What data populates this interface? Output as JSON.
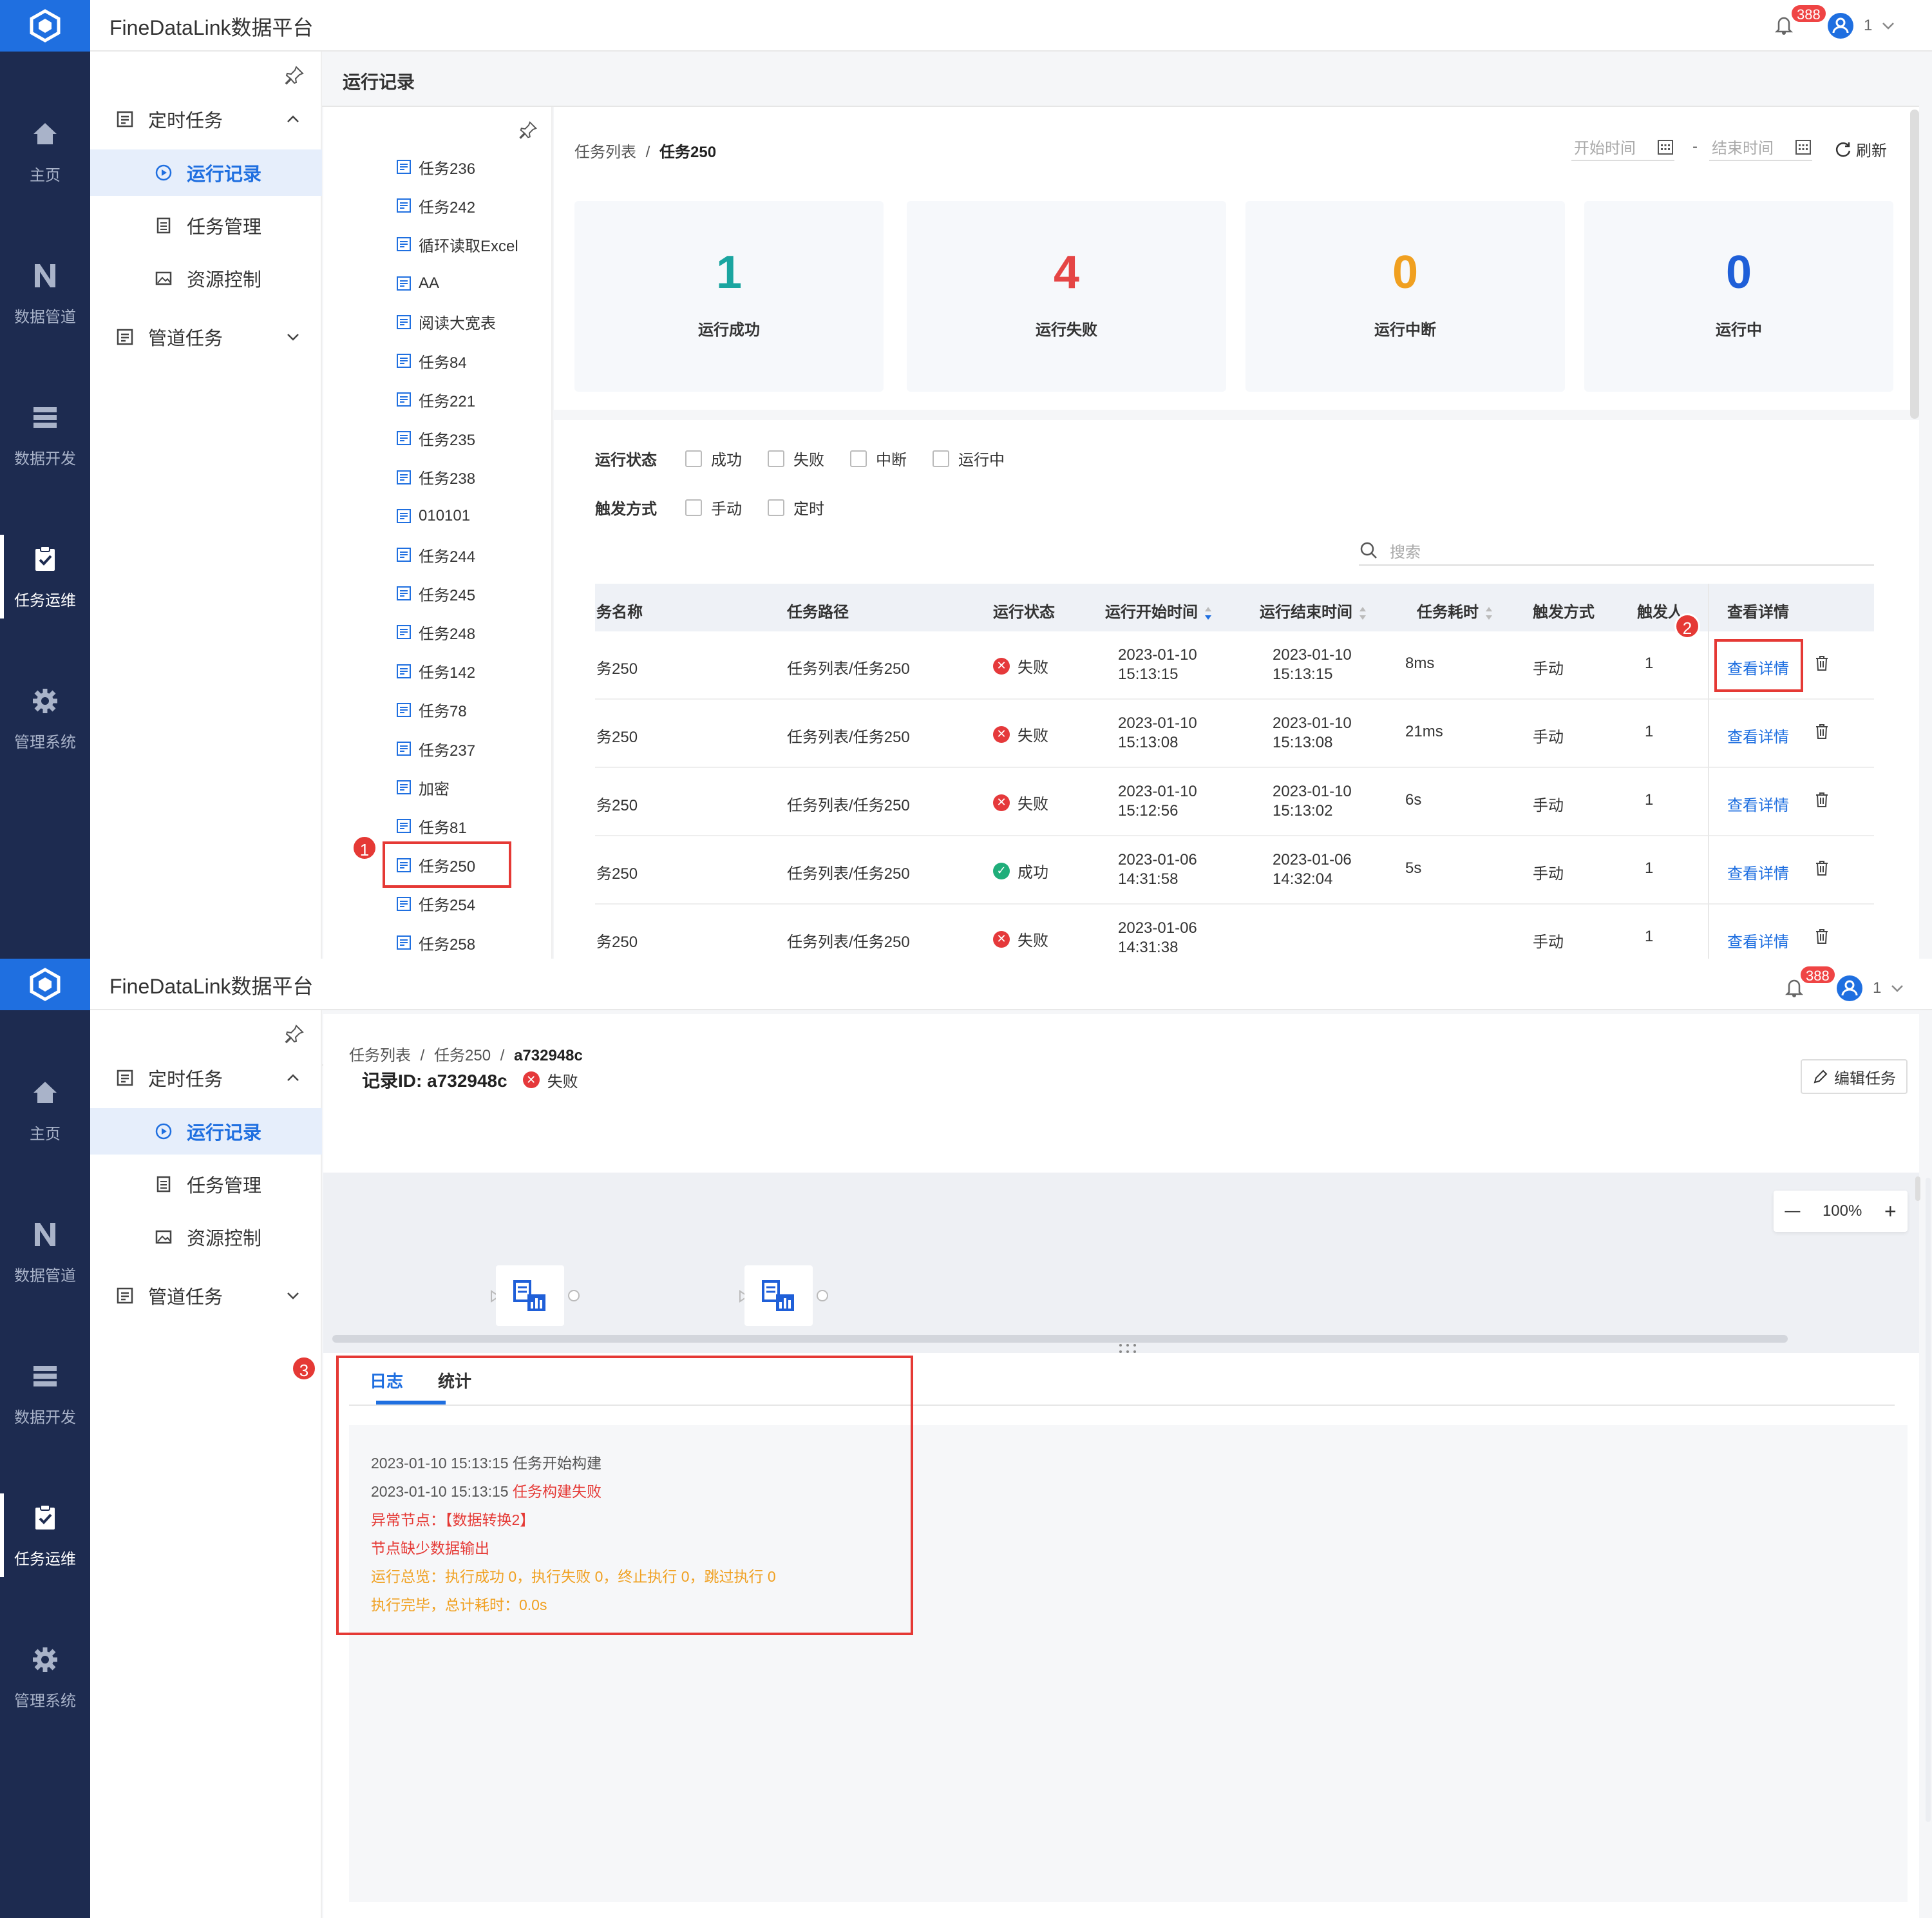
{
  "app": {
    "title": "FineDataLink数据平台",
    "notification_count": "388",
    "user": "1"
  },
  "nav": [
    {
      "label": "主页",
      "icon": "home-icon"
    },
    {
      "label": "数据管道",
      "icon": "pipeline-icon"
    },
    {
      "label": "数据开发",
      "icon": "data-dev-icon"
    },
    {
      "label": "任务运维",
      "icon": "task-ops-icon"
    },
    {
      "label": "管理系统",
      "icon": "gear-icon"
    }
  ],
  "menu": {
    "group1": "定时任务",
    "items": [
      "运行记录",
      "任务管理",
      "资源控制"
    ],
    "group2": "管道任务"
  },
  "page_title": "运行记录",
  "tree": [
    "任务236",
    "任务242",
    "循环读取Excel",
    "AA",
    "阅读大宽表",
    "任务84",
    "任务221",
    "任务235",
    "任务238",
    "010101",
    "任务244",
    "任务245",
    "任务248",
    "任务142",
    "任务78",
    "任务237",
    "加密",
    "任务81",
    "任务250",
    "任务254",
    "任务258"
  ],
  "list_view": {
    "breadcrumb": {
      "root": "任务列表",
      "sep": "/",
      "current": "任务250"
    },
    "start_time_placeholder": "开始时间",
    "range_sep": "-",
    "end_time_placeholder": "结束时间",
    "refresh": "刷新",
    "stats": [
      {
        "value": "1",
        "label": "运行成功",
        "color": "#1aa5a0"
      },
      {
        "value": "4",
        "label": "运行失败",
        "color": "#e54545"
      },
      {
        "value": "0",
        "label": "运行中断",
        "color": "#f0a020"
      },
      {
        "value": "0",
        "label": "运行中",
        "color": "#1f5fd8"
      }
    ],
    "filter_status_label": "运行状态",
    "filter_status": [
      "成功",
      "失败",
      "中断",
      "运行中"
    ],
    "filter_trigger_label": "触发方式",
    "filter_trigger": [
      "手动",
      "定时"
    ],
    "search_placeholder": "搜索",
    "columns": [
      "务名称",
      "任务路径",
      "运行状态",
      "运行开始时间",
      "运行结束时间",
      "任务耗时",
      "触发方式",
      "触发人",
      "查看详情"
    ],
    "rows": [
      {
        "name": "务250",
        "path": "任务列表/任务250",
        "status": "失败",
        "start_date": "2023-01-10",
        "start_time": "15:13:15",
        "end_date": "2023-01-10",
        "end_time": "15:13:15",
        "duration": "8ms",
        "trigger": "手动",
        "user": "1",
        "detail": "查看详情"
      },
      {
        "name": "务250",
        "path": "任务列表/任务250",
        "status": "失败",
        "start_date": "2023-01-10",
        "start_time": "15:13:08",
        "end_date": "2023-01-10",
        "end_time": "15:13:08",
        "duration": "21ms",
        "trigger": "手动",
        "user": "1",
        "detail": "查看详情"
      },
      {
        "name": "务250",
        "path": "任务列表/任务250",
        "status": "失败",
        "start_date": "2023-01-10",
        "start_time": "15:12:56",
        "end_date": "2023-01-10",
        "end_time": "15:13:02",
        "duration": "6s",
        "trigger": "手动",
        "user": "1",
        "detail": "查看详情"
      },
      {
        "name": "务250",
        "path": "任务列表/任务250",
        "status": "成功",
        "start_date": "2023-01-06",
        "start_time": "14:31:58",
        "end_date": "2023-01-06",
        "end_time": "14:32:04",
        "duration": "5s",
        "trigger": "手动",
        "user": "1",
        "detail": "查看详情"
      },
      {
        "name": "务250",
        "path": "任务列表/任务250",
        "status": "失败",
        "start_date": "2023-01-06",
        "start_time": "14:31:38",
        "end_date": "",
        "end_time": "",
        "duration": "",
        "trigger": "手动",
        "user": "1",
        "detail": "查看详情"
      }
    ]
  },
  "markers": [
    "1",
    "2",
    "3"
  ],
  "detail_view": {
    "breadcrumb": {
      "root": "任务列表",
      "sep1": "/",
      "task": "任务250",
      "sep2": "/",
      "record": "a732948c"
    },
    "record_label": "记录ID: a732948c",
    "status": "失败",
    "edit_button": "编辑任务",
    "zoom": "100%",
    "tabs": [
      "日志",
      "统计"
    ],
    "log": [
      {
        "time": "2023-01-10 15:13:15",
        "text": "任务开始构建"
      },
      {
        "time": "2023-01-10 15:13:15",
        "text": "任务构建失败"
      },
      {
        "text": "异常节点：【数据转换2】"
      },
      {
        "text": "节点缺少数据输出"
      },
      {
        "text": "运行总览：执行成功 0，执行失败 0，终止执行 0，跳过执行 0"
      },
      {
        "text": "执行完毕，总计耗时：0.0s"
      }
    ]
  }
}
